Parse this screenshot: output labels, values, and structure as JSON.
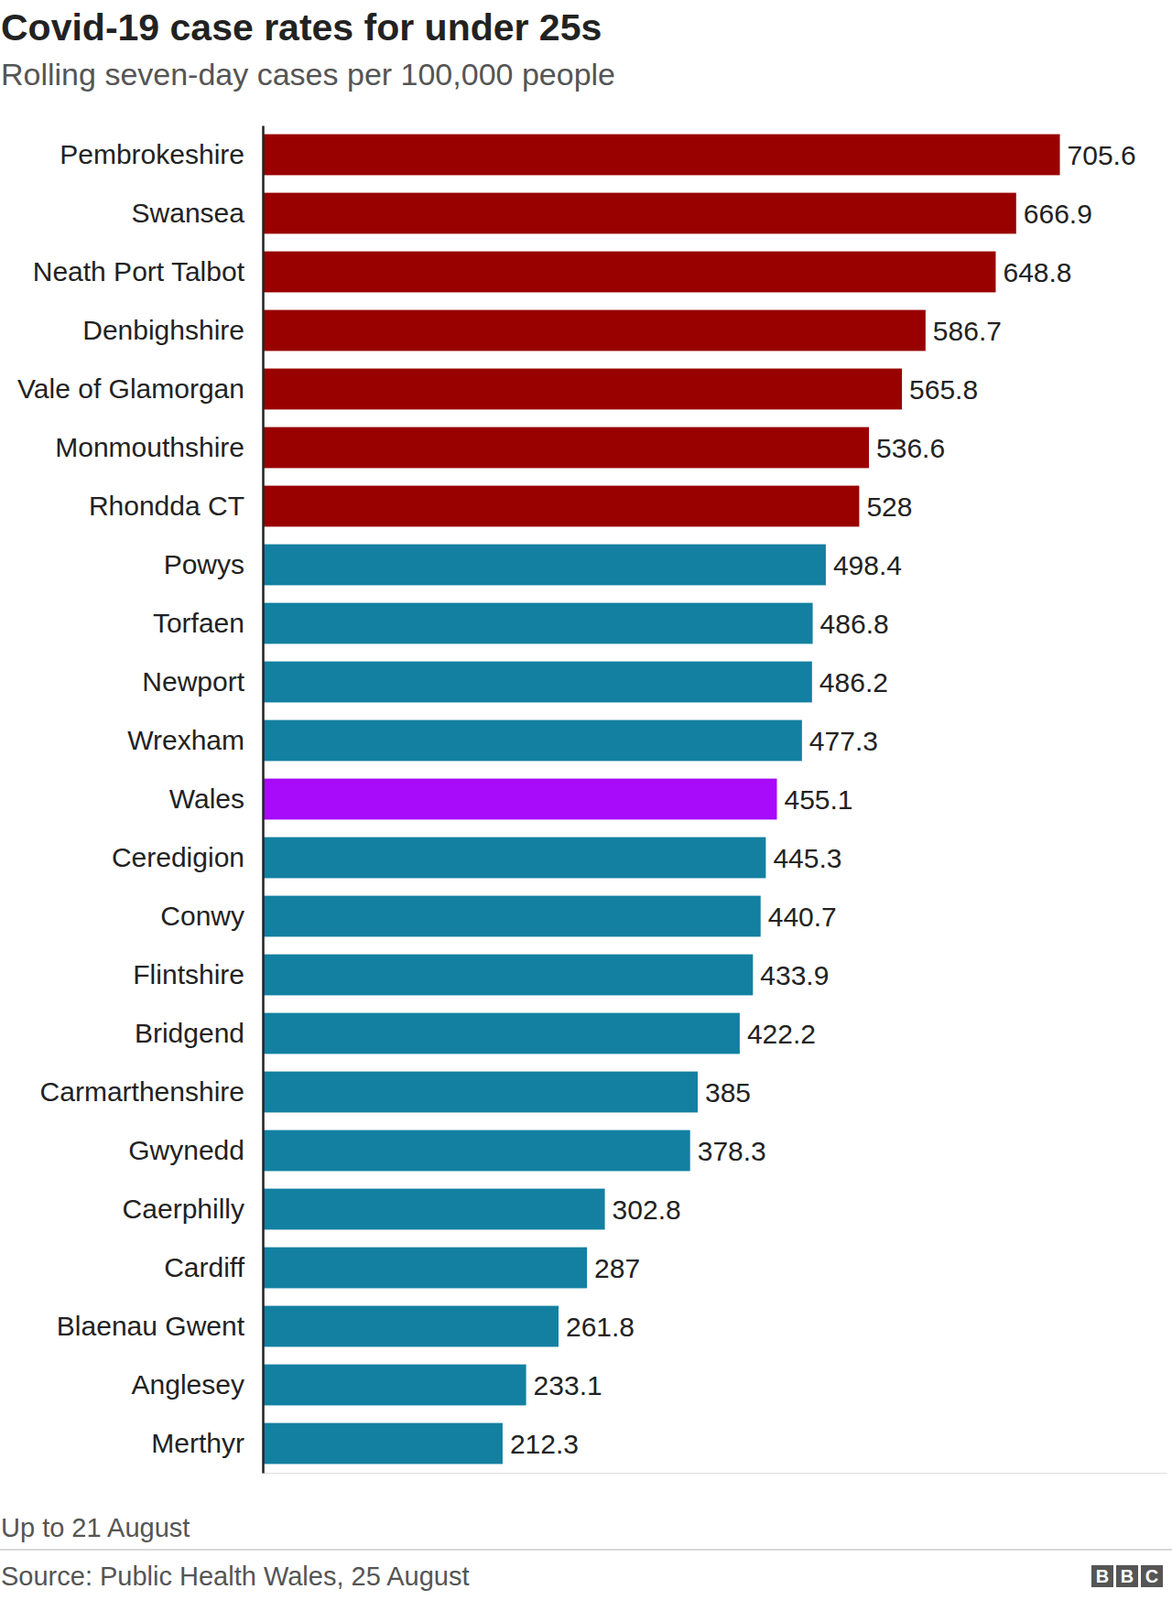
{
  "chart_data": {
    "type": "bar",
    "orientation": "horizontal",
    "title": "Covid-19 case rates for under 25s",
    "subtitle": "Rolling seven-day cases per 100,000 people",
    "categories": [
      "Pembrokeshire",
      "Swansea",
      "Neath Port Talbot",
      "Denbighshire",
      "Vale of Glamorgan",
      "Monmouthshire",
      "Rhondda CT",
      "Powys",
      "Torfaen",
      "Newport",
      "Wrexham",
      "Wales",
      "Ceredigion",
      "Conwy",
      "Flintshire",
      "Bridgend",
      "Carmarthenshire",
      "Gwynedd",
      "Caerphilly",
      "Cardiff",
      "Blaenau Gwent",
      "Anglesey",
      "Merthyr"
    ],
    "values": [
      705.6,
      666.9,
      648.8,
      586.7,
      565.8,
      536.6,
      528,
      498.4,
      486.8,
      486.2,
      477.3,
      455.1,
      445.3,
      440.7,
      433.9,
      422.2,
      385,
      378.3,
      302.8,
      287,
      261.8,
      233.1,
      212.3
    ],
    "colors": [
      "#990000",
      "#990000",
      "#990000",
      "#990000",
      "#990000",
      "#990000",
      "#990000",
      "#1380a1",
      "#1380a1",
      "#1380a1",
      "#1380a1",
      "#a70bf9",
      "#1380a1",
      "#1380a1",
      "#1380a1",
      "#1380a1",
      "#1380a1",
      "#1380a1",
      "#1380a1",
      "#1380a1",
      "#1380a1",
      "#1380a1",
      "#1380a1"
    ],
    "xlim": [
      0,
      800
    ],
    "xticks": [],
    "grid": false,
    "data_labels": true,
    "tick_labels": "y",
    "note": "Up to 21 August",
    "source": "Source: Public Health Wales, 25 August",
    "logo": "BBC"
  }
}
